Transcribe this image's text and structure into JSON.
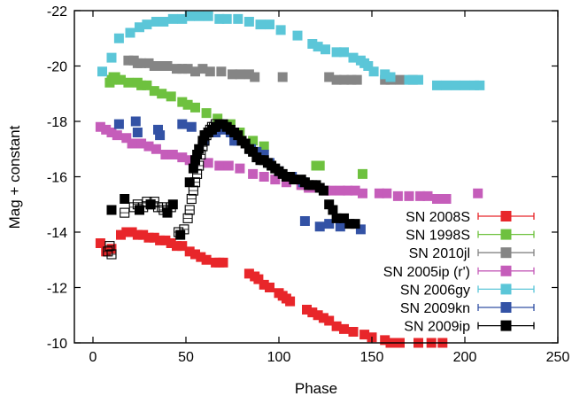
{
  "chart_data": {
    "type": "scatter",
    "title": "",
    "xlabel": "Phase",
    "ylabel": "Mag + constant",
    "xlim": [
      -10,
      250
    ],
    "ylim": [
      -10,
      -22
    ],
    "y_axis_inverted": true,
    "grid": false,
    "legend_position": "bottom-right",
    "xticks": [
      "0",
      "50",
      "100",
      "150",
      "200",
      "250"
    ],
    "yticks": [
      "-10",
      "-12",
      "-14",
      "-16",
      "-18",
      "-20",
      "-22"
    ],
    "series": [
      {
        "name": "SN 2008S",
        "color": "#e8262a",
        "marker": "square",
        "points": [
          [
            4,
            -13.6
          ],
          [
            7,
            -13.3
          ],
          [
            10,
            -13.4
          ],
          [
            15,
            -13.9
          ],
          [
            18,
            -14.0
          ],
          [
            21,
            -14.0
          ],
          [
            24,
            -13.9
          ],
          [
            27,
            -13.9
          ],
          [
            30,
            -13.8
          ],
          [
            33,
            -13.8
          ],
          [
            36,
            -13.7
          ],
          [
            39,
            -13.7
          ],
          [
            42,
            -13.6
          ],
          [
            45,
            -13.5
          ],
          [
            48,
            -13.5
          ],
          [
            52,
            -13.3
          ],
          [
            55,
            -13.2
          ],
          [
            58,
            -13.1
          ],
          [
            61,
            -13.0
          ],
          [
            66,
            -12.9
          ],
          [
            68,
            -12.9
          ],
          [
            70,
            -12.9
          ],
          [
            84,
            -12.5
          ],
          [
            87,
            -12.4
          ],
          [
            89,
            -12.3
          ],
          [
            92,
            -12.1
          ],
          [
            95,
            -12.0
          ],
          [
            100,
            -11.8
          ],
          [
            102,
            -11.7
          ],
          [
            104,
            -11.6
          ],
          [
            106,
            -11.5
          ],
          [
            115,
            -11.2
          ],
          [
            118,
            -11.1
          ],
          [
            121,
            -11.0
          ],
          [
            124,
            -10.9
          ],
          [
            127,
            -10.8
          ],
          [
            131,
            -10.6
          ],
          [
            135,
            -10.5
          ],
          [
            140,
            -10.4
          ],
          [
            146,
            -10.3
          ],
          [
            150,
            -10.2
          ],
          [
            157,
            -10.1
          ],
          [
            160,
            -10.0
          ],
          [
            165,
            -10.0
          ],
          [
            175,
            -10.0
          ],
          [
            182,
            -10.0
          ],
          [
            188,
            -10.0
          ],
          [
            192,
            -9.9
          ]
        ]
      },
      {
        "name": "SN 1998S",
        "color": "#6ec13f",
        "marker": "square",
        "points": [
          [
            9,
            -19.4
          ],
          [
            10,
            -19.5
          ],
          [
            11,
            -19.6
          ],
          [
            12,
            -19.6
          ],
          [
            15,
            -19.5
          ],
          [
            19,
            -19.4
          ],
          [
            24,
            -19.4
          ],
          [
            26,
            -19.3
          ],
          [
            29,
            -19.3
          ],
          [
            33,
            -19.1
          ],
          [
            37,
            -19.0
          ],
          [
            42,
            -18.9
          ],
          [
            48,
            -18.7
          ],
          [
            51,
            -18.6
          ],
          [
            55,
            -18.5
          ],
          [
            61,
            -18.3
          ],
          [
            67,
            -18.1
          ],
          [
            74,
            -17.9
          ],
          [
            79,
            -17.6
          ],
          [
            86,
            -17.3
          ],
          [
            92,
            -17.1
          ],
          [
            113,
            -15.7
          ],
          [
            120,
            -16.4
          ],
          [
            122,
            -16.4
          ],
          [
            145,
            -16.1
          ]
        ]
      },
      {
        "name": "SN 2010jl",
        "color": "#858585",
        "marker": "square",
        "points": [
          [
            19,
            -20.2
          ],
          [
            22,
            -20.2
          ],
          [
            24,
            -20.1
          ],
          [
            26,
            -20.1
          ],
          [
            30,
            -20.1
          ],
          [
            33,
            -20.0
          ],
          [
            36,
            -20.0
          ],
          [
            40,
            -20.0
          ],
          [
            45,
            -19.9
          ],
          [
            48,
            -19.9
          ],
          [
            51,
            -19.9
          ],
          [
            55,
            -19.8
          ],
          [
            59,
            -19.9
          ],
          [
            63,
            -19.8
          ],
          [
            69,
            -19.8
          ],
          [
            75,
            -19.7
          ],
          [
            79,
            -19.7
          ],
          [
            84,
            -19.7
          ],
          [
            87,
            -19.6
          ],
          [
            102,
            -19.6
          ],
          [
            127,
            -19.6
          ],
          [
            131,
            -19.5
          ],
          [
            135,
            -19.5
          ],
          [
            139,
            -19.5
          ],
          [
            142,
            -19.5
          ],
          [
            157,
            -19.5
          ],
          [
            160,
            -19.5
          ],
          [
            165,
            -19.5
          ],
          [
            172,
            -19.5
          ]
        ]
      },
      {
        "name": "SN 2005ip (r')",
        "color": "#c55dba",
        "marker": "square",
        "points": [
          [
            4,
            -17.8
          ],
          [
            7,
            -17.7
          ],
          [
            10,
            -17.6
          ],
          [
            13,
            -17.5
          ],
          [
            18,
            -17.4
          ],
          [
            21,
            -17.2
          ],
          [
            26,
            -17.2
          ],
          [
            30,
            -17.1
          ],
          [
            34,
            -17.0
          ],
          [
            39,
            -16.8
          ],
          [
            43,
            -16.8
          ],
          [
            48,
            -16.7
          ],
          [
            52,
            -16.6
          ],
          [
            55,
            -16.6
          ],
          [
            62,
            -16.5
          ],
          [
            68,
            -16.4
          ],
          [
            73,
            -16.4
          ],
          [
            79,
            -16.3
          ],
          [
            86,
            -16.1
          ],
          [
            92,
            -16.0
          ],
          [
            98,
            -15.9
          ],
          [
            104,
            -15.8
          ],
          [
            112,
            -15.7
          ],
          [
            116,
            -15.6
          ],
          [
            120,
            -15.6
          ],
          [
            125,
            -15.5
          ],
          [
            128,
            -15.5
          ],
          [
            133,
            -15.5
          ],
          [
            137,
            -15.5
          ],
          [
            141,
            -15.5
          ],
          [
            145,
            -15.4
          ],
          [
            154,
            -15.4
          ],
          [
            158,
            -15.4
          ],
          [
            164,
            -15.3
          ],
          [
            170,
            -15.3
          ],
          [
            176,
            -15.3
          ],
          [
            180,
            -15.3
          ],
          [
            185,
            -15.2
          ],
          [
            190,
            -15.2
          ],
          [
            207,
            -15.4
          ]
        ]
      },
      {
        "name": "SN 2006gy",
        "color": "#5bc6d8",
        "marker": "square",
        "points": [
          [
            5,
            -19.8
          ],
          [
            10,
            -20.3
          ],
          [
            14,
            -21.0
          ],
          [
            20,
            -21.2
          ],
          [
            25,
            -21.4
          ],
          [
            29,
            -21.5
          ],
          [
            34,
            -21.6
          ],
          [
            38,
            -21.6
          ],
          [
            43,
            -21.7
          ],
          [
            48,
            -21.7
          ],
          [
            52,
            -21.8
          ],
          [
            57,
            -21.8
          ],
          [
            62,
            -21.8
          ],
          [
            68,
            -21.7
          ],
          [
            72,
            -21.7
          ],
          [
            78,
            -21.7
          ],
          [
            84,
            -21.6
          ],
          [
            90,
            -21.5
          ],
          [
            95,
            -21.5
          ],
          [
            101,
            -21.3
          ],
          [
            110,
            -21.1
          ],
          [
            118,
            -20.8
          ],
          [
            121,
            -20.7
          ],
          [
            125,
            -20.6
          ],
          [
            131,
            -20.5
          ],
          [
            135,
            -20.5
          ],
          [
            140,
            -20.3
          ],
          [
            144,
            -20.2
          ],
          [
            146,
            -20.1
          ],
          [
            148,
            -20.0
          ],
          [
            151,
            -19.8
          ],
          [
            157,
            -19.7
          ],
          [
            160,
            -19.6
          ],
          [
            170,
            -19.5
          ],
          [
            175,
            -19.5
          ],
          [
            185,
            -19.3
          ],
          [
            190,
            -19.3
          ],
          [
            195,
            -19.3
          ],
          [
            200,
            -19.3
          ],
          [
            205,
            -19.3
          ],
          [
            208,
            -19.3
          ]
        ]
      },
      {
        "name": "SN 2009kn",
        "color": "#3352a5",
        "marker": "square",
        "points": [
          [
            14,
            -17.9
          ],
          [
            23,
            -18.0
          ],
          [
            24,
            -17.6
          ],
          [
            35,
            -17.7
          ],
          [
            36,
            -17.5
          ],
          [
            48,
            -17.9
          ],
          [
            53,
            -17.8
          ],
          [
            60,
            -17.3
          ],
          [
            66,
            -17.6
          ],
          [
            70,
            -17.7
          ],
          [
            74,
            -17.6
          ],
          [
            76,
            -17.3
          ],
          [
            78,
            -17.3
          ],
          [
            85,
            -17.0
          ],
          [
            88,
            -16.9
          ],
          [
            92,
            -16.8
          ],
          [
            95,
            -16.5
          ],
          [
            100,
            -16.2
          ],
          [
            107,
            -16.0
          ],
          [
            113,
            -15.8
          ],
          [
            114,
            -14.4
          ],
          [
            122,
            -14.2
          ],
          [
            127,
            -14.3
          ],
          [
            133,
            -14.2
          ],
          [
            144,
            -14.1
          ]
        ]
      },
      {
        "name": "SN 2009ip",
        "color": "#000000",
        "marker": "square",
        "points": [
          [
            10,
            -14.8
          ],
          [
            17,
            -15.2
          ],
          [
            25,
            -14.8
          ],
          [
            31,
            -15.0
          ],
          [
            40,
            -14.7
          ],
          [
            43,
            -15.0
          ],
          [
            47,
            -13.9
          ],
          [
            52,
            -15.8
          ],
          [
            54,
            -16.3
          ],
          [
            55,
            -16.6
          ],
          [
            56,
            -16.8
          ],
          [
            57,
            -17.0
          ],
          [
            59,
            -17.3
          ],
          [
            60,
            -17.5
          ],
          [
            62,
            -17.6
          ],
          [
            64,
            -17.7
          ],
          [
            66,
            -17.8
          ],
          [
            68,
            -17.9
          ],
          [
            70,
            -17.9
          ],
          [
            72,
            -17.8
          ],
          [
            74,
            -17.7
          ],
          [
            76,
            -17.6
          ],
          [
            78,
            -17.5
          ],
          [
            80,
            -17.3
          ],
          [
            82,
            -17.2
          ],
          [
            84,
            -17.0
          ],
          [
            86,
            -16.9
          ],
          [
            88,
            -16.7
          ],
          [
            90,
            -16.6
          ],
          [
            92,
            -16.6
          ],
          [
            94,
            -16.5
          ],
          [
            96,
            -16.4
          ],
          [
            98,
            -16.3
          ],
          [
            100,
            -16.2
          ],
          [
            102,
            -16.1
          ],
          [
            104,
            -16.0
          ],
          [
            106,
            -16.0
          ],
          [
            108,
            -15.9
          ],
          [
            112,
            -15.9
          ],
          [
            114,
            -15.8
          ],
          [
            116,
            -15.7
          ],
          [
            118,
            -15.7
          ],
          [
            120,
            -15.7
          ],
          [
            122,
            -15.6
          ],
          [
            124,
            -15.5
          ],
          [
            127,
            -15.0
          ],
          [
            129,
            -14.8
          ],
          [
            131,
            -14.5
          ],
          [
            135,
            -14.5
          ],
          [
            138,
            -14.3
          ],
          [
            141,
            -14.3
          ]
        ]
      },
      {
        "name": "",
        "color": "#000000",
        "marker": "open-square",
        "points": [
          [
            8,
            -13.3
          ],
          [
            9,
            -13.5
          ],
          [
            10,
            -13.2
          ],
          [
            17,
            -14.7
          ],
          [
            22,
            -14.9
          ],
          [
            24,
            -15.0
          ],
          [
            27,
            -14.9
          ],
          [
            29,
            -15.1
          ],
          [
            31,
            -15.0
          ],
          [
            33,
            -15.1
          ],
          [
            35,
            -14.9
          ],
          [
            37,
            -14.9
          ],
          [
            38,
            -14.8
          ],
          [
            40,
            -14.8
          ],
          [
            42,
            -14.9
          ],
          [
            46,
            -14.0
          ],
          [
            49,
            -14.1
          ],
          [
            51,
            -14.5
          ],
          [
            52,
            -14.8
          ],
          [
            53,
            -15.2
          ],
          [
            54,
            -15.5
          ],
          [
            55,
            -15.8
          ],
          [
            56,
            -16.1
          ],
          [
            57,
            -16.4
          ],
          [
            58,
            -16.8
          ],
          [
            59,
            -17.1
          ],
          [
            60,
            -17.3
          ],
          [
            61,
            -17.5
          ],
          [
            62,
            -17.6
          ],
          [
            63,
            -17.7
          ],
          [
            64,
            -17.8
          ],
          [
            65,
            -17.8
          ],
          [
            66,
            -17.9
          ]
        ]
      }
    ],
    "legend": [
      {
        "name": "SN 2008S",
        "color": "#e8262a"
      },
      {
        "name": "SN 1998S",
        "color": "#6ec13f"
      },
      {
        "name": "SN 2010jl",
        "color": "#858585"
      },
      {
        "name": "SN 2005ip (r')",
        "color": "#c55dba"
      },
      {
        "name": "SN 2006gy",
        "color": "#5bc6d8"
      },
      {
        "name": "SN 2009kn",
        "color": "#3352a5"
      },
      {
        "name": "SN 2009ip",
        "color": "#000000"
      }
    ]
  }
}
